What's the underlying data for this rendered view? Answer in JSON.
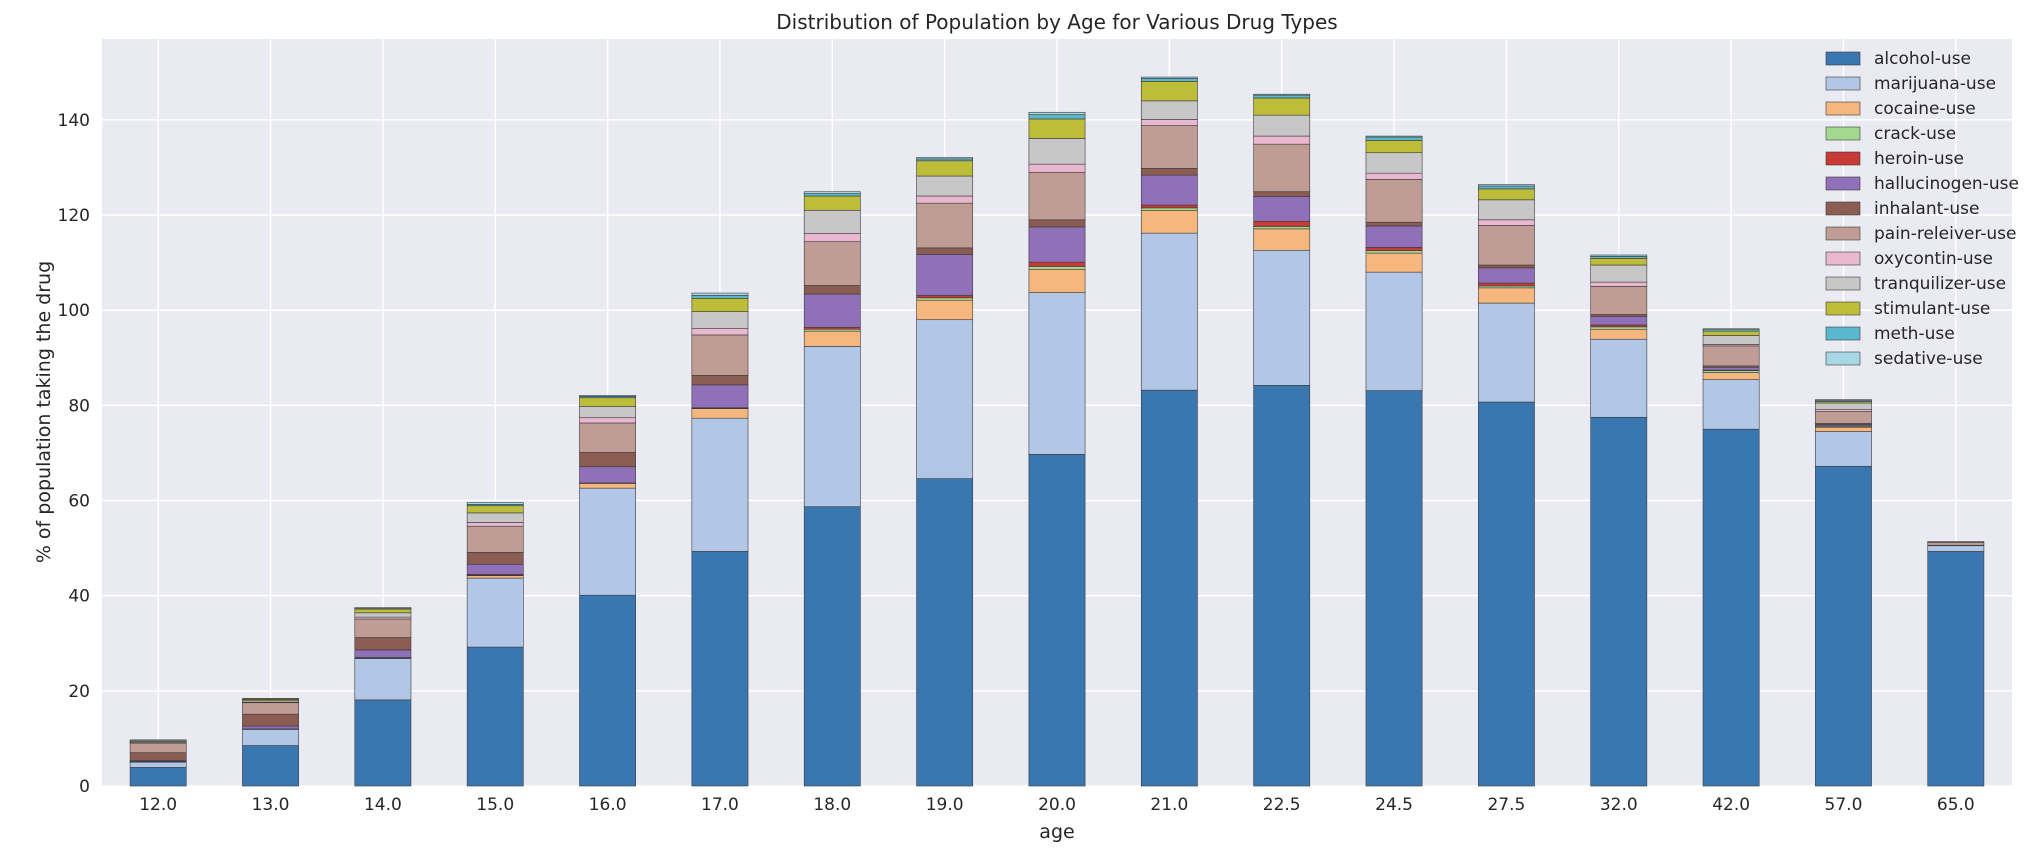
{
  "chart_data": {
    "type": "bar",
    "stacked": true,
    "title": "Distribution of Population by Age for Various Drug Types",
    "xlabel": "age",
    "ylabel": "% of population taking the drug",
    "ylim": [
      0,
      157
    ],
    "yticks": [
      0,
      20,
      40,
      60,
      80,
      100,
      120,
      140
    ],
    "grid": true,
    "legend_position": "top-right",
    "categories": [
      "12.0",
      "13.0",
      "14.0",
      "15.0",
      "16.0",
      "17.0",
      "18.0",
      "19.0",
      "20.0",
      "21.0",
      "22.5",
      "24.5",
      "27.5",
      "32.0",
      "42.0",
      "57.0",
      "65.0"
    ],
    "series": [
      {
        "name": "alcohol-use",
        "color": "#3a76b0",
        "values": [
          3.9,
          8.5,
          18.1,
          29.2,
          40.1,
          49.3,
          58.7,
          64.6,
          69.7,
          83.2,
          84.2,
          83.1,
          80.7,
          77.5,
          75.0,
          67.2,
          49.3
        ]
      },
      {
        "name": "marijuana-use",
        "color": "#b2c7e6",
        "values": [
          1.1,
          3.4,
          8.7,
          14.5,
          22.5,
          28.0,
          33.7,
          33.4,
          34.0,
          33.0,
          28.4,
          24.9,
          20.8,
          16.4,
          10.4,
          7.3,
          1.2
        ]
      },
      {
        "name": "cocaine-use",
        "color": "#f5b77d",
        "values": [
          0.1,
          0.1,
          0.1,
          0.5,
          1.0,
          2.0,
          3.2,
          4.1,
          4.9,
          4.8,
          4.5,
          4.0,
          3.2,
          2.1,
          1.5,
          0.9,
          0.0
        ]
      },
      {
        "name": "crack-use",
        "color": "#a3d98f",
        "values": [
          0.0,
          0.0,
          0.0,
          0.1,
          0.0,
          0.1,
          0.4,
          0.5,
          0.6,
          0.5,
          0.5,
          0.5,
          0.4,
          0.5,
          0.4,
          0.2,
          0.0
        ]
      },
      {
        "name": "heroin-use",
        "color": "#c83a36",
        "values": [
          0.1,
          0.0,
          0.1,
          0.2,
          0.1,
          0.1,
          0.4,
          0.5,
          0.9,
          0.6,
          1.1,
          0.7,
          0.6,
          0.4,
          0.1,
          0.1,
          0.0
        ]
      },
      {
        "name": "hallucinogen-use",
        "color": "#9070b9",
        "values": [
          0.2,
          0.6,
          1.6,
          2.1,
          3.4,
          4.8,
          7.0,
          8.6,
          7.4,
          6.3,
          5.2,
          4.5,
          3.2,
          1.8,
          0.6,
          0.3,
          0.1
        ]
      },
      {
        "name": "inhalant-use",
        "color": "#8a5c52",
        "values": [
          1.6,
          2.5,
          2.6,
          2.5,
          3.0,
          2.0,
          1.8,
          1.4,
          1.5,
          1.4,
          1.0,
          0.8,
          0.6,
          0.4,
          0.3,
          0.2,
          0.0
        ]
      },
      {
        "name": "pain-releiver-use",
        "color": "#bf9d95",
        "values": [
          2.0,
          2.4,
          3.9,
          5.5,
          6.2,
          8.5,
          9.2,
          9.4,
          10.0,
          9.0,
          10.0,
          9.0,
          8.3,
          5.9,
          4.2,
          2.5,
          0.6
        ]
      },
      {
        "name": "oxycontin-use",
        "color": "#eab7d1",
        "values": [
          0.1,
          0.1,
          0.4,
          0.8,
          1.1,
          1.4,
          1.7,
          1.5,
          1.7,
          1.3,
          1.7,
          1.3,
          1.2,
          0.9,
          0.3,
          0.4,
          0.0
        ]
      },
      {
        "name": "tranquilizer-use",
        "color": "#c7c7c7",
        "values": [
          0.2,
          0.3,
          0.9,
          2.0,
          2.4,
          3.5,
          4.9,
          4.2,
          5.4,
          3.9,
          4.4,
          4.3,
          4.2,
          3.6,
          1.9,
          1.4,
          0.2
        ]
      },
      {
        "name": "stimulant-use",
        "color": "#bdbd39",
        "values": [
          0.2,
          0.3,
          0.8,
          1.5,
          1.8,
          2.8,
          3.0,
          3.2,
          4.1,
          4.1,
          3.6,
          2.6,
          2.3,
          1.4,
          0.9,
          0.3,
          0.0
        ]
      },
      {
        "name": "meth-use",
        "color": "#5ab8ce",
        "values": [
          0.0,
          0.1,
          0.1,
          0.3,
          0.3,
          0.6,
          0.5,
          0.4,
          0.9,
          0.6,
          0.6,
          0.7,
          0.6,
          0.4,
          0.3,
          0.2,
          0.0
        ]
      },
      {
        "name": "sedative-use",
        "color": "#a7d7e5",
        "values": [
          0.2,
          0.1,
          0.2,
          0.4,
          0.2,
          0.5,
          0.4,
          0.3,
          0.5,
          0.3,
          0.2,
          0.2,
          0.3,
          0.3,
          0.2,
          0.2,
          0.0
        ]
      }
    ]
  }
}
